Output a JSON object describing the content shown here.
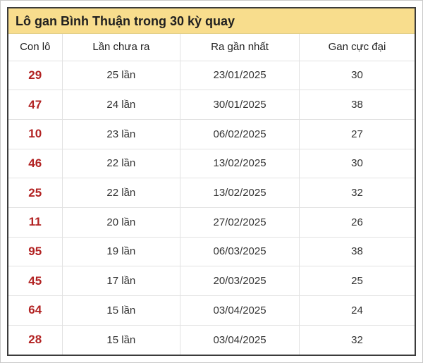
{
  "panel": {
    "title": "Lô gan Bình Thuận trong 30 kỳ quay"
  },
  "chart_data": {
    "type": "table",
    "title": "Lô gan Bình Thuận trong 30 kỳ quay",
    "columns": [
      "Con lô",
      "Lần chưa ra",
      "Ra gần nhất",
      "Gan cực đại"
    ],
    "rows": [
      [
        "29",
        "25 lần",
        "23/01/2025",
        30
      ],
      [
        "47",
        "24 lần",
        "30/01/2025",
        38
      ],
      [
        "10",
        "23 lần",
        "06/02/2025",
        27
      ],
      [
        "46",
        "22 lần",
        "13/02/2025",
        30
      ],
      [
        "25",
        "22 lần",
        "13/02/2025",
        32
      ],
      [
        "11",
        "20 lần",
        "27/02/2025",
        26
      ],
      [
        "95",
        "19 lần",
        "06/03/2025",
        38
      ],
      [
        "45",
        "17 lần",
        "20/03/2025",
        25
      ],
      [
        "64",
        "15 lần",
        "03/04/2025",
        24
      ],
      [
        "28",
        "15 lần",
        "03/04/2025",
        32
      ]
    ]
  },
  "colors": {
    "title_bg": "#f8dd8d",
    "title_text": "#1f1f1f",
    "panel_border": "#3b3b3b",
    "page_border": "#c9c9c9",
    "divider": "#e2e2e2",
    "body_text": "#333333",
    "header_text": "#222222",
    "lo_number_red": "#b22222"
  }
}
